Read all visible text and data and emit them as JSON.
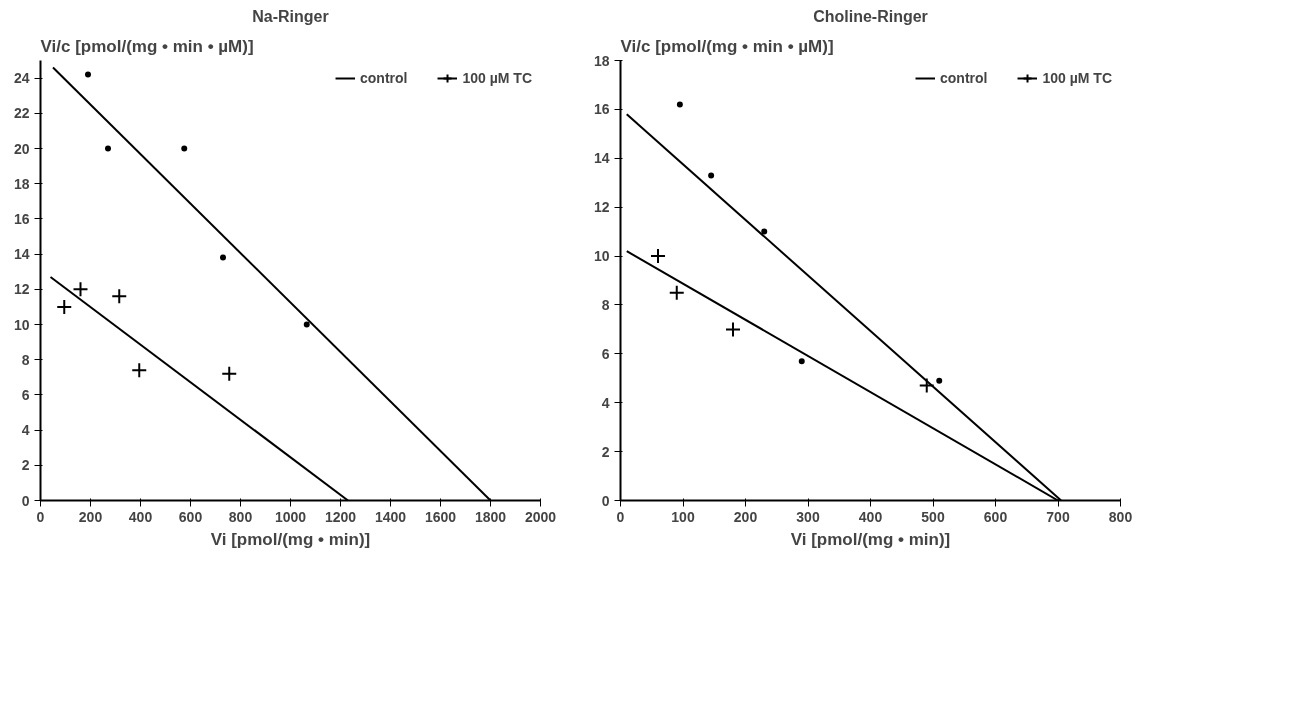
{
  "chart_data": [
    {
      "type": "scatter",
      "title": "Na-Ringer",
      "xlabel": "Vi [pmol/(mg • min)]",
      "ylabel": "Vi/c [pmol/(mg • min • µM)]",
      "xlim": [
        0,
        2000
      ],
      "ylim": [
        0,
        25
      ],
      "xticks": [
        0,
        200,
        400,
        600,
        800,
        1000,
        1200,
        1400,
        1600,
        1800,
        2000
      ],
      "yticks": [
        0,
        2,
        4,
        6,
        8,
        10,
        12,
        14,
        16,
        18,
        20,
        22,
        24
      ],
      "grid": false,
      "legend": "top right",
      "series": [
        {
          "type": "scatter",
          "marker": "circle",
          "color": "#000000",
          "x": [
            190,
            270,
            575,
            730,
            1065
          ],
          "values": [
            24.2,
            20,
            20,
            13.8,
            10
          ]
        },
        {
          "type": "line",
          "name": "control",
          "color": "#000000",
          "line_style": "solid",
          "x": [
            50,
            1800
          ],
          "values": [
            24.6,
            0
          ]
        },
        {
          "type": "scatter",
          "name": "100 µM TC",
          "marker": "cross",
          "color": "#000000",
          "x": [
            95,
            160,
            315,
            395,
            755
          ],
          "values": [
            11,
            12,
            11.6,
            7.4,
            7.2
          ]
        },
        {
          "type": "line",
          "name": "100 µM TC",
          "color": "#000000",
          "line_style": "solid",
          "x": [
            40,
            1230
          ],
          "values": [
            12.7,
            0
          ]
        }
      ]
    },
    {
      "type": "scatter",
      "title": "Choline-Ringer",
      "xlabel": "Vi [pmol/(mg • min)]",
      "ylabel": "Vi/c [pmol/(mg • min • µM)]",
      "xlim": [
        0,
        800
      ],
      "ylim": [
        0,
        18
      ],
      "xticks": [
        0,
        100,
        200,
        300,
        400,
        500,
        600,
        700,
        800
      ],
      "yticks": [
        0,
        2,
        4,
        6,
        8,
        10,
        12,
        14,
        16,
        18
      ],
      "grid": false,
      "legend": "top right",
      "series": [
        {
          "type": "scatter",
          "marker": "circle",
          "color": "#000000",
          "x": [
            95,
            145,
            230,
            290,
            510
          ],
          "values": [
            16.2,
            13.3,
            11,
            5.7,
            4.9
          ]
        },
        {
          "type": "line",
          "name": "control",
          "color": "#000000",
          "line_style": "solid",
          "x": [
            10,
            705
          ],
          "values": [
            15.8,
            0
          ]
        },
        {
          "type": "scatter",
          "name": "100 µM TC",
          "marker": "cross",
          "color": "#000000",
          "x": [
            60,
            90,
            180,
            490
          ],
          "values": [
            10,
            8.5,
            7,
            4.7
          ]
        },
        {
          "type": "line",
          "name": "100 µM TC",
          "color": "#000000",
          "line_style": "solid",
          "x": [
            10,
            700
          ],
          "values": [
            10.2,
            0
          ]
        }
      ]
    }
  ]
}
